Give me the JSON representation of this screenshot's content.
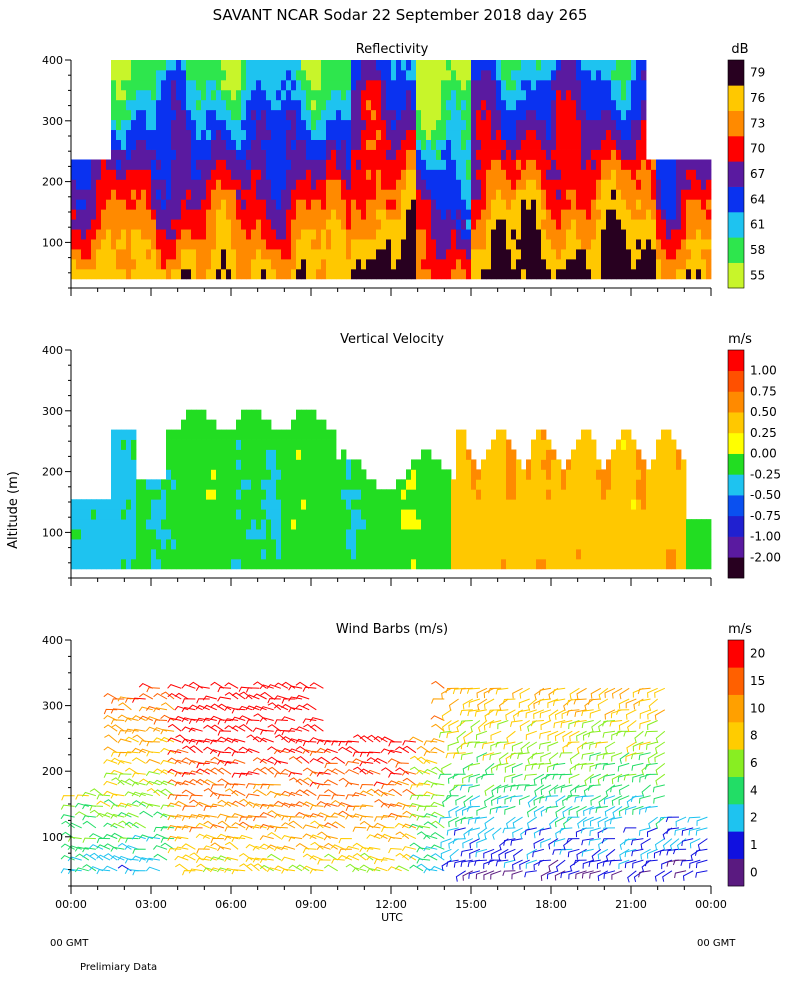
{
  "page_title": "SAVANT  NCAR Sodar  22 September 2018  day 265",
  "y_axis_label": "Altitude (m)",
  "x_axis_label": "UTC",
  "left_tz_label": "00 GMT",
  "right_tz_label": "00 GMT",
  "footer_note": "Prelimiary Data",
  "chart_data": [
    {
      "type": "heatmap",
      "title": "Reflectivity",
      "unit": "dB",
      "x": "time of day (UTC hours)",
      "xlim": [
        0,
        24
      ],
      "xticks": [
        "00:00",
        "03:00",
        "06:00",
        "09:00",
        "12:00",
        "15:00",
        "18:00",
        "21:00",
        "00:00"
      ],
      "ylim": [
        25,
        400
      ],
      "yticks": [
        100,
        200,
        300,
        400
      ],
      "colorbar_labels": [
        "55",
        "58",
        "61",
        "64",
        "67",
        "70",
        "73",
        "76",
        "79"
      ],
      "colorbar_colors": [
        "#c8f52a",
        "#2ee64d",
        "#1ec3f0",
        "#0a32f0",
        "#5a1aa0",
        "#ff0000",
        "#ff8a00",
        "#ffc800",
        "#280020"
      ]
    },
    {
      "type": "heatmap",
      "title": "Vertical Velocity",
      "unit": "m/s",
      "x": "time of day (UTC hours)",
      "xlim": [
        0,
        24
      ],
      "ylim": [
        25,
        400
      ],
      "yticks": [
        100,
        200,
        300,
        400
      ],
      "colorbar_labels": [
        "-2.00",
        "-1.00",
        "-0.75",
        "-0.50",
        "-0.25",
        "0.00",
        "0.25",
        "0.50",
        "0.75",
        "1.00"
      ],
      "colorbar_colors": [
        "#280020",
        "#5a1aa0",
        "#2020d0",
        "#0a50f0",
        "#1ec3f0",
        "#22dd22",
        "#ffff00",
        "#ffc800",
        "#ff8a00",
        "#ff5000",
        "#ff0000"
      ]
    },
    {
      "type": "scatter",
      "title": "Wind Barbs (m/s)",
      "unit": "m/s",
      "x": "time of day (UTC hours)",
      "xlim": [
        0,
        24
      ],
      "ylim": [
        25,
        400
      ],
      "yticks": [
        100,
        200,
        300,
        400
      ],
      "colorbar_labels": [
        "0",
        "1",
        "2",
        "4",
        "6",
        "8",
        "10",
        "15",
        "20"
      ],
      "colorbar_colors": [
        "#5a1a80",
        "#1010e0",
        "#1ec3f0",
        "#22dd66",
        "#88ee22",
        "#ffcc00",
        "#ffa000",
        "#ff6000",
        "#ff0000"
      ]
    }
  ]
}
